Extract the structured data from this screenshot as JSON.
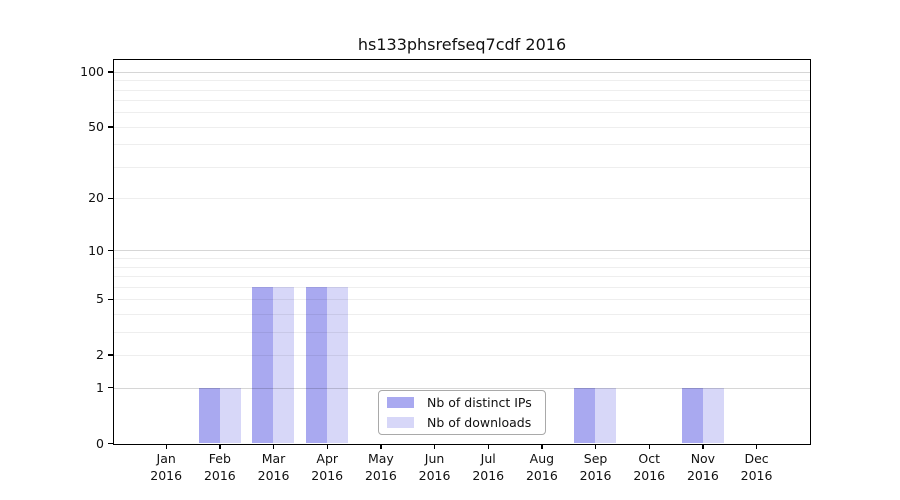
{
  "chart_data": {
    "type": "bar",
    "title": "hs133phsrefseq7cdf 2016",
    "categories": [
      "Jan",
      "Feb",
      "Mar",
      "Apr",
      "May",
      "Jun",
      "Jul",
      "Aug",
      "Sep",
      "Oct",
      "Nov",
      "Dec"
    ],
    "x_year_label": "2016",
    "series": [
      {
        "name": "Nb of distinct IPs",
        "color": "#a9a9f0",
        "values": [
          0,
          1,
          6,
          6,
          0,
          0,
          0,
          0,
          1,
          0,
          1,
          0
        ]
      },
      {
        "name": "Nb of downloads",
        "color": "#d7d7f8",
        "values": [
          0,
          1,
          6,
          6,
          0,
          0,
          0,
          0,
          1,
          0,
          1,
          0
        ]
      }
    ],
    "yscale": "log1p",
    "ylim": [
      0,
      116
    ],
    "yticks": [
      0,
      1,
      2,
      5,
      10,
      20,
      50,
      100
    ],
    "minor_grid_values": [
      2,
      3,
      4,
      5,
      6,
      7,
      8,
      9,
      20,
      30,
      40,
      50,
      60,
      70,
      80,
      90
    ],
    "major_grid_values": [
      1,
      10,
      100
    ],
    "grid": "horizontal",
    "legend_position": "lower center"
  }
}
